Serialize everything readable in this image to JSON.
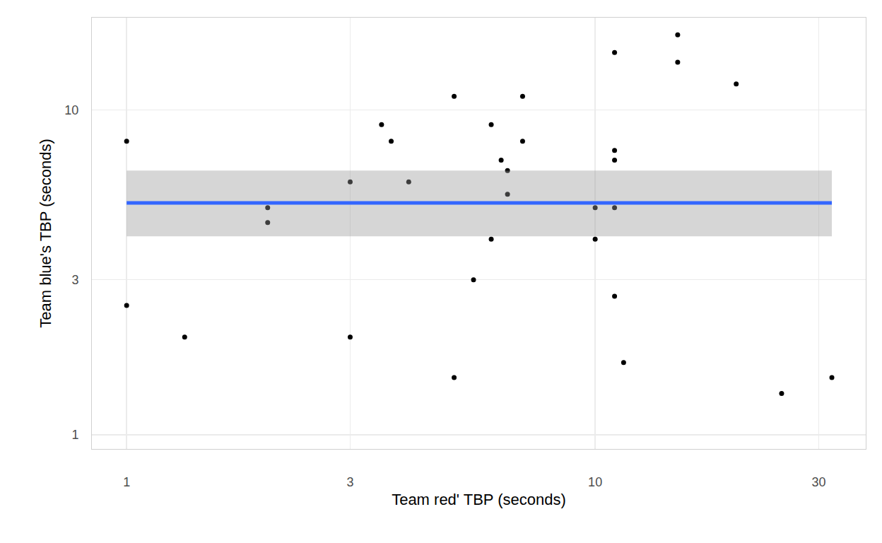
{
  "chart_data": {
    "type": "scatter",
    "x_label": "Team red' TBP (seconds)",
    "y_label": "Team blue's TBP (seconds)",
    "x": [
      1,
      1,
      1.33,
      2,
      2,
      3,
      3,
      3.5,
      3.67,
      4,
      5,
      5,
      5.5,
      6,
      6,
      6.3,
      6.5,
      6.5,
      7,
      7,
      10,
      10,
      11,
      11,
      11,
      11,
      11,
      11.5,
      15,
      15,
      20,
      25,
      32
    ],
    "values": [
      8,
      2.5,
      2,
      5,
      4.5,
      6,
      2,
      9,
      8,
      6,
      11,
      1.5,
      3,
      9,
      4,
      7,
      6.5,
      5.5,
      11,
      8,
      5,
      4,
      15,
      7.5,
      7,
      5,
      2.67,
      1.67,
      17,
      14,
      12,
      1.34,
      1.5
    ],
    "color": "#000000",
    "marker": "circle",
    "mean_line": {
      "y": 5.17,
      "ci_low": 4.08,
      "ci_high": 6.5,
      "color": "#3366ff",
      "band_color": "#999999"
    },
    "log": true,
    "grid": true,
    "xlim": [
      0.843,
      37.8
    ],
    "ylim": [
      0.905,
      19.2
    ],
    "xticks": [
      1,
      3,
      10,
      30
    ],
    "yticks": [
      1,
      3,
      10
    ]
  }
}
